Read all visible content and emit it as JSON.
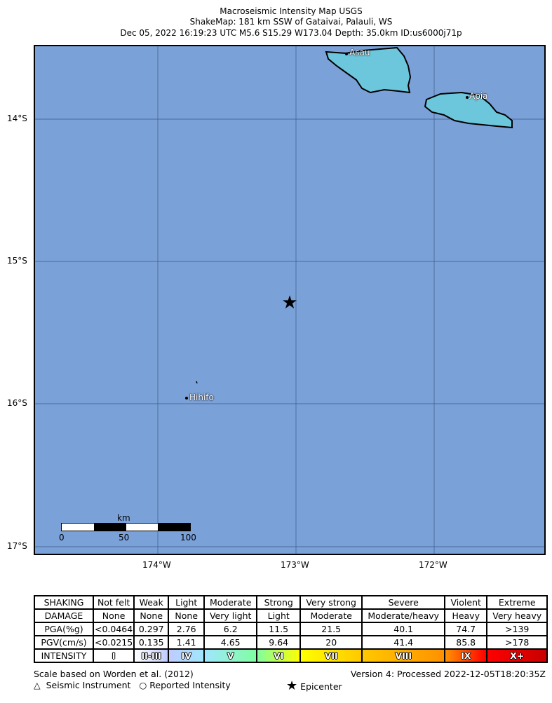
{
  "title": {
    "line1": "Macroseismic Intensity Map USGS",
    "line2": "ShakeMap: 181 km SSW of Gataivai, Palauli, WS",
    "line3": "Dec 05, 2022 16:19:23 UTC M5.6 S15.29 W173.04 Depth: 35.0km ID:us6000j71p"
  },
  "map": {
    "background": "#7ba1d9",
    "land_color": "#6cc6dc",
    "lat_labels": [
      "14°S",
      "15°S",
      "16°S",
      "17°S"
    ],
    "lon_labels": [
      "174°W",
      "173°W",
      "172°W"
    ],
    "places": [
      {
        "name": "Asau"
      },
      {
        "name": "Apia"
      },
      {
        "name": "Hihifo"
      }
    ],
    "epicenter_icon": "star-icon",
    "scale_bar": {
      "unit": "km",
      "labels": [
        "0",
        "50",
        "100"
      ]
    }
  },
  "legend": {
    "rows": [
      {
        "label": "SHAKING",
        "values": [
          "Not felt",
          "Weak",
          "Light",
          "Moderate",
          "Strong",
          "Very strong",
          "Severe",
          "Violent",
          "Extreme"
        ]
      },
      {
        "label": "DAMAGE",
        "values": [
          "None",
          "None",
          "None",
          "Very light",
          "Light",
          "Moderate",
          "Moderate/heavy",
          "Heavy",
          "Very heavy"
        ]
      },
      {
        "label": "PGA(%g)",
        "values": [
          "<0.0464",
          "0.297",
          "2.76",
          "6.2",
          "11.5",
          "21.5",
          "40.1",
          "74.7",
          ">139"
        ]
      },
      {
        "label": "PGV(cm/s)",
        "values": [
          "<0.0215",
          "0.135",
          "1.41",
          "4.65",
          "9.64",
          "20",
          "41.4",
          "85.8",
          ">178"
        ]
      }
    ],
    "intensity_label": "INTENSITY",
    "intensity": [
      {
        "label": "I",
        "color": "#ffffff"
      },
      {
        "label": "II-III",
        "color": "#bfccff"
      },
      {
        "label": "IV",
        "color": "#a0e6ff"
      },
      {
        "label": "V",
        "color": "#80ffa0"
      },
      {
        "label": "VI",
        "color": "#ffff00"
      },
      {
        "label": "VII",
        "color": "#ffc800"
      },
      {
        "label": "VIII",
        "color": "#ff9100"
      },
      {
        "label": "IX",
        "color": "#ff0000"
      },
      {
        "label": "X+",
        "color": "#c80000"
      }
    ]
  },
  "footer": {
    "scale_note": "Scale based on Worden et al. (2012)",
    "version": "Version 4: Processed 2022-12-05T18:20:35Z",
    "seismic": "Seismic Instrument",
    "reported": "Reported Intensity",
    "epicenter": "Epicenter"
  }
}
